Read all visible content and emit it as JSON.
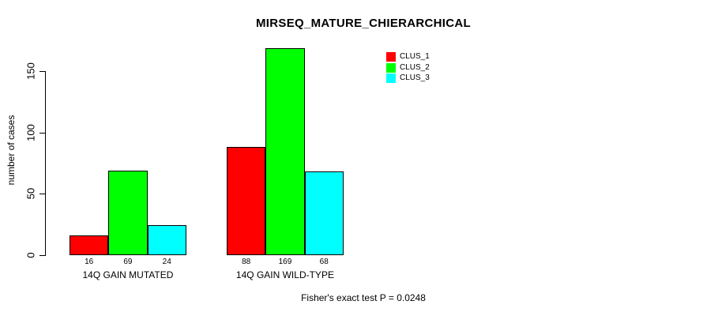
{
  "chart_data": {
    "type": "bar",
    "title": "MIRSEQ_MATURE_CHIERARCHICAL",
    "categories": [
      "14Q GAIN MUTATED",
      "14Q GAIN WILD-TYPE"
    ],
    "series": [
      {
        "name": "CLUS_1",
        "color": "#ff0000",
        "values": [
          16,
          88
        ]
      },
      {
        "name": "CLUS_2",
        "color": "#00ff00",
        "values": [
          69,
          169
        ]
      },
      {
        "name": "CLUS_3",
        "color": "#00ffff",
        "values": [
          24,
          68
        ]
      }
    ],
    "xlabel": "",
    "ylabel": "number of cases",
    "ylim": [
      0,
      150
    ],
    "yticks": [
      0,
      50,
      100,
      150
    ],
    "bar_value_labels": true,
    "bar_border_color": "#000000",
    "grid": false,
    "legend_position": "top-right",
    "annotation": "Fisher's exact test P = 0.0248",
    "background": "#ffffff",
    "text_color": "#000000"
  }
}
